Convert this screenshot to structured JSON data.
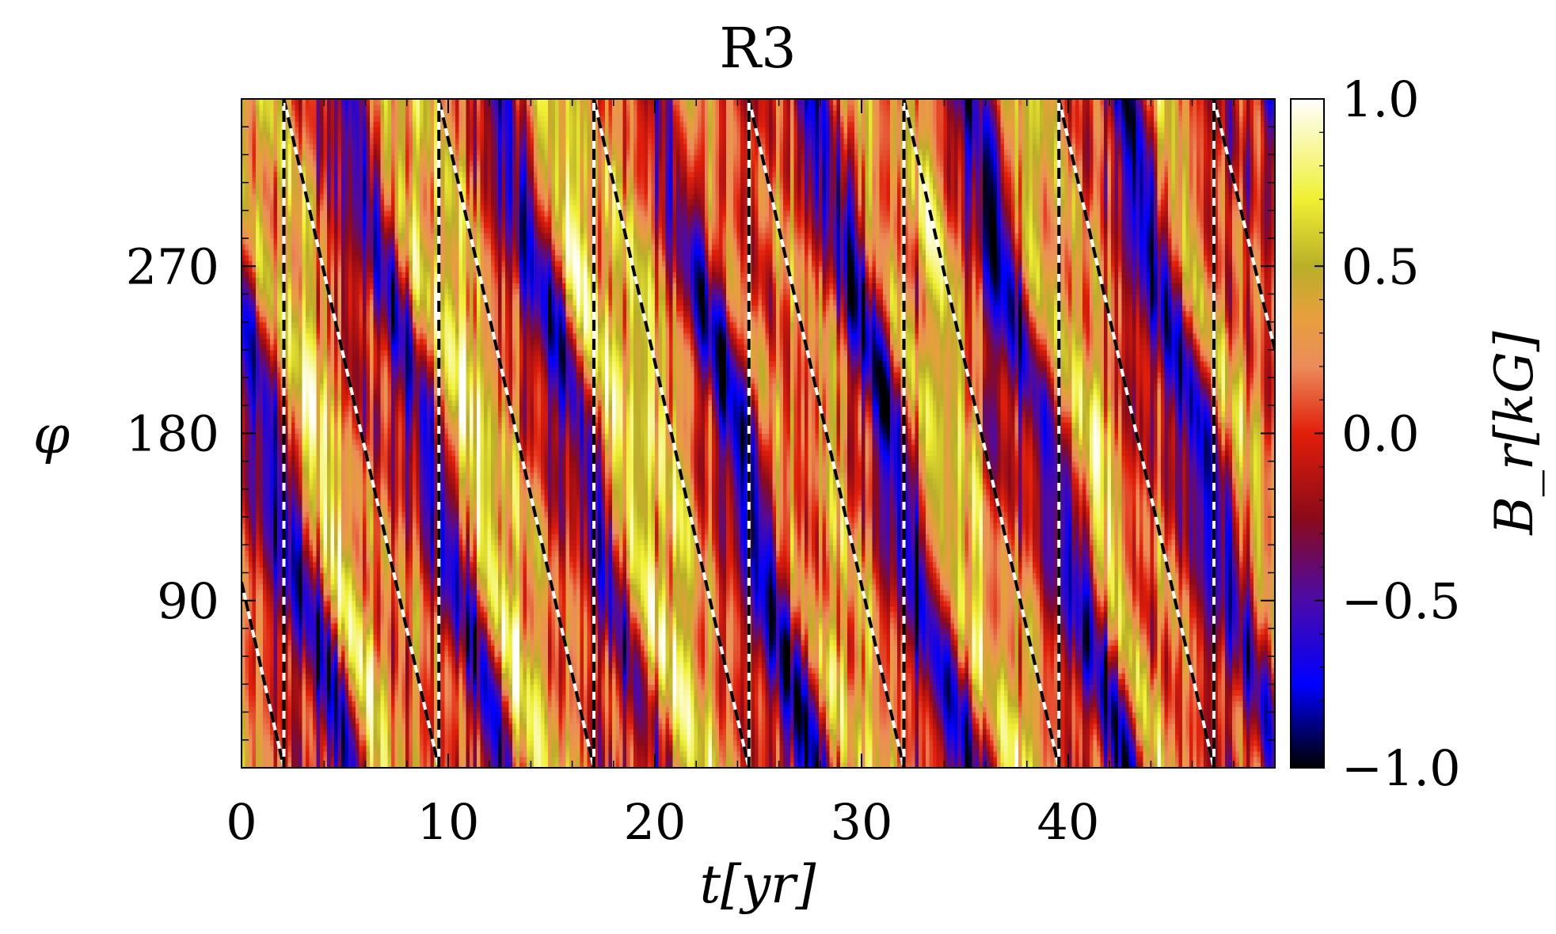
{
  "chart_data": {
    "type": "heatmap",
    "title": "R3",
    "xlabel": "t[yr]",
    "ylabel": "φ",
    "xlim": [
      0,
      50
    ],
    "ylim": [
      0,
      360
    ],
    "x_ticks": [
      0,
      10,
      20,
      30,
      40
    ],
    "x_tick_labels": [
      "0",
      "10",
      "20",
      "30",
      "40"
    ],
    "y_ticks": [
      90,
      180,
      270
    ],
    "y_tick_labels": [
      "90",
      "180",
      "270"
    ],
    "colorbar": {
      "label": "B_r[kG]",
      "range": [
        -1.0,
        1.0
      ],
      "ticks": [
        1.0,
        0.5,
        0.0,
        -0.5,
        -1.0
      ],
      "tick_labels": [
        "1.0",
        "0.5",
        "0.0",
        "−0.5",
        "−1.0"
      ],
      "stops": [
        {
          "value": -1.0,
          "color": "#000000"
        },
        {
          "value": -0.75,
          "color": "#0000ff"
        },
        {
          "value": -0.5,
          "color": "#4b0aa8"
        },
        {
          "value": -0.25,
          "color": "#8c0a18"
        },
        {
          "value": 0.0,
          "color": "#e11e0a"
        },
        {
          "value": 0.2,
          "color": "#eb8c5a"
        },
        {
          "value": 0.35,
          "color": "#e6a03c"
        },
        {
          "value": 0.5,
          "color": "#b9af28"
        },
        {
          "value": 0.7,
          "color": "#f0f032"
        },
        {
          "value": 1.0,
          "color": "#ffffff"
        }
      ]
    },
    "drift_lines": {
      "style": "black/white dashed",
      "segments": [
        {
          "t": [
            0.0,
            2.05
          ],
          "phi": [
            100,
            0
          ]
        },
        {
          "t": [
            2.05,
            9.55
          ],
          "phi": [
            360,
            0
          ]
        },
        {
          "t": [
            9.55,
            17.05
          ],
          "phi": [
            360,
            0
          ]
        },
        {
          "t": [
            17.05,
            24.55
          ],
          "phi": [
            360,
            0
          ]
        },
        {
          "t": [
            24.55,
            32.05
          ],
          "phi": [
            360,
            0
          ]
        },
        {
          "t": [
            32.05,
            39.55
          ],
          "phi": [
            360,
            0
          ]
        },
        {
          "t": [
            39.55,
            47.05
          ],
          "phi": [
            360,
            0
          ]
        },
        {
          "t": [
            47.05,
            50.0
          ],
          "phi": [
            360,
            225
          ]
        }
      ],
      "jumps_at_t": [
        2.05,
        9.55,
        17.05,
        24.55,
        32.05,
        39.55,
        47.05
      ]
    }
  }
}
